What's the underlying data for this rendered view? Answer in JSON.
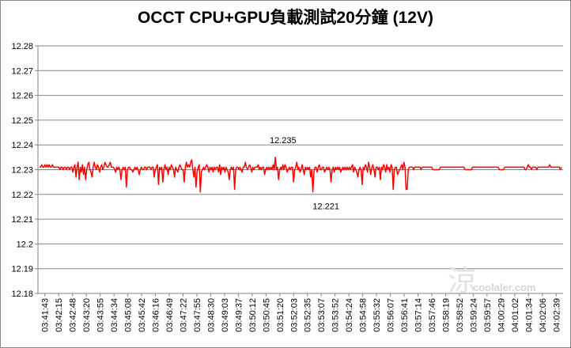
{
  "chart_data": {
    "type": "line",
    "title": "OCCT CPU+GPU負載測試20分鐘 (12V)",
    "ylim": [
      12.18,
      12.28
    ],
    "y_ticks": [
      "12.28",
      "12.27",
      "12.26",
      "12.25",
      "12.24",
      "12.23",
      "12.22",
      "12.21",
      "12.2",
      "12.19",
      "12.18"
    ],
    "x_ticks": [
      "03:41:43",
      "03:42:15",
      "03:42:48",
      "03:43:20",
      "03:43:55",
      "03:44:34",
      "03:45:08",
      "03:45:42",
      "03:46:16",
      "03:46:49",
      "03:47:22",
      "03:47:55",
      "03:48:30",
      "03:49:03",
      "03:49:37",
      "03:50:12",
      "03:50:45",
      "03:51:20",
      "03:52:03",
      "03:52:35",
      "03:53:07",
      "03:53:52",
      "03:54:24",
      "03:54:58",
      "03:55:32",
      "03:56:07",
      "03:56:41",
      "03:57:14",
      "03:57:46",
      "03:58:19",
      "03:58:52",
      "03:59:24",
      "03:59:57",
      "04:00:29",
      "04:01:02",
      "04:01:34",
      "04:02:06",
      "04:02:39"
    ],
    "grid": true,
    "series_color": "#ff0000",
    "annotations": [
      {
        "label": "12.235",
        "tick_index": 17,
        "value": 12.235
      },
      {
        "label": "12.221",
        "tick_index": 20,
        "value": 12.221
      }
    ],
    "series": [
      {
        "values": [
          12.231,
          12.231,
          12.232,
          12.231,
          12.231,
          12.232,
          12.231,
          12.232,
          12.231,
          12.232,
          12.231,
          12.231,
          12.232,
          12.231,
          12.231,
          12.231,
          12.231,
          12.231,
          12.231,
          12.23,
          12.231,
          12.231,
          12.23,
          12.231,
          12.231,
          12.23,
          12.231,
          12.231,
          12.23,
          12.231,
          12.231,
          12.229,
          12.231,
          12.232,
          12.227,
          12.231,
          12.233,
          12.226,
          12.231,
          12.229,
          12.232,
          12.228,
          12.231,
          12.226,
          12.23,
          12.232,
          12.233,
          12.23,
          12.229,
          12.227,
          12.231,
          12.233,
          12.231,
          12.23,
          12.232,
          12.231,
          12.229,
          12.231,
          12.232,
          12.23,
          12.231,
          12.233,
          12.232,
          12.231,
          12.231,
          12.232,
          12.233,
          12.231,
          12.231,
          12.231,
          12.23,
          12.229,
          12.231,
          12.23,
          12.231,
          12.23,
          12.226,
          12.23,
          12.231,
          12.23,
          12.231,
          12.223,
          12.23,
          12.231,
          12.231,
          12.23,
          12.23,
          12.229,
          12.23,
          12.231,
          12.23,
          12.231,
          12.23,
          12.228,
          12.23,
          12.231,
          12.23,
          12.23,
          12.231,
          12.231,
          12.23,
          12.231,
          12.231,
          12.231,
          12.23,
          12.231,
          12.231,
          12.227,
          12.23,
          12.231,
          12.232,
          12.224,
          12.231,
          12.23,
          12.231,
          12.225,
          12.23,
          12.232,
          12.23,
          12.231,
          12.228,
          12.231,
          12.23,
          12.232,
          12.231,
          12.23,
          12.227,
          12.231,
          12.23,
          12.229,
          12.231,
          12.232,
          12.231,
          12.23,
          12.23,
          12.225,
          12.231,
          12.233,
          12.231,
          12.232,
          12.231,
          12.233,
          12.234,
          12.23,
          12.227,
          12.231,
          12.223,
          12.229,
          12.231,
          12.232,
          12.221,
          12.229,
          12.23,
          12.231,
          12.23,
          12.231,
          12.232,
          12.231,
          12.229,
          12.231,
          12.23,
          12.231,
          12.229,
          12.231,
          12.23,
          12.231,
          12.231,
          12.229,
          12.232,
          12.228,
          12.231,
          12.23,
          12.231,
          12.229,
          12.231,
          12.23,
          12.229,
          12.226,
          12.23,
          12.231,
          12.23,
          12.231,
          12.222,
          12.23,
          12.231,
          12.231,
          12.23,
          12.231,
          12.23,
          12.229,
          12.231,
          12.231,
          12.233,
          12.231,
          12.23,
          12.231,
          12.232,
          12.231,
          12.229,
          12.231,
          12.23,
          12.231,
          12.231,
          12.231,
          12.232,
          12.23,
          12.231,
          12.23,
          12.231,
          12.231,
          12.228,
          12.23,
          12.231,
          12.23,
          12.231,
          12.23,
          12.231,
          12.23,
          12.232,
          12.23,
          12.235,
          12.23,
          12.231,
          12.226,
          12.23,
          12.231,
          12.23,
          12.232,
          12.23,
          12.232,
          12.231,
          12.229,
          12.23,
          12.231,
          12.23,
          12.231,
          12.231,
          12.225,
          12.23,
          12.231,
          12.233,
          12.23,
          12.231,
          12.229,
          12.23,
          12.232,
          12.23,
          12.228,
          12.231,
          12.23,
          12.231,
          12.23,
          12.231,
          12.227,
          12.23,
          12.221,
          12.229,
          12.231,
          12.231,
          12.229,
          12.231,
          12.232,
          12.23,
          12.23,
          12.231,
          12.231,
          12.229,
          12.23,
          12.231,
          12.23,
          12.231,
          12.23,
          12.225,
          12.23,
          12.231,
          12.229,
          12.231,
          12.23,
          12.231,
          12.23,
          12.231,
          12.229,
          12.23,
          12.231,
          12.23,
          12.231,
          12.23,
          12.231,
          12.23,
          12.231,
          12.23,
          12.231,
          12.232,
          12.229,
          12.231,
          12.23,
          12.229,
          12.227,
          12.23,
          12.231,
          12.23,
          12.224,
          12.231,
          12.23,
          12.232,
          12.231,
          12.229,
          12.233,
          12.231,
          12.228,
          12.231,
          12.232,
          12.23,
          12.227,
          12.231,
          12.231,
          12.23,
          12.231,
          12.226,
          12.231,
          12.23,
          12.232,
          12.231,
          12.229,
          12.232,
          12.23,
          12.231,
          12.229,
          12.232,
          12.231,
          12.222,
          12.23,
          12.231,
          12.231,
          12.228,
          12.229,
          12.23,
          12.231,
          12.232,
          12.23,
          12.233,
          12.231,
          12.222,
          12.222,
          12.23,
          12.231,
          12.231,
          12.231,
          12.231,
          12.23,
          12.231,
          12.231,
          12.231,
          12.231,
          12.231,
          12.231,
          12.23,
          12.231,
          12.231,
          12.231,
          12.231,
          12.231,
          12.231,
          12.231,
          12.231,
          12.231,
          12.231,
          12.23,
          12.23,
          12.23,
          12.23,
          12.23,
          12.23,
          12.23,
          12.231,
          12.231,
          12.231,
          12.231,
          12.231,
          12.231,
          12.231,
          12.231,
          12.231,
          12.231,
          12.231,
          12.231,
          12.231,
          12.231,
          12.231,
          12.231,
          12.231,
          12.231,
          12.231,
          12.231,
          12.231,
          12.231,
          12.231,
          12.23,
          12.23,
          12.23,
          12.23,
          12.23,
          12.23,
          12.23,
          12.231,
          12.231,
          12.231,
          12.231,
          12.231,
          12.231,
          12.231,
          12.231,
          12.231,
          12.231,
          12.231,
          12.231,
          12.231,
          12.231,
          12.231,
          12.231,
          12.231,
          12.231,
          12.231,
          12.231,
          12.231,
          12.231,
          12.231,
          12.231,
          12.231,
          12.23,
          12.23,
          12.23,
          12.23,
          12.23,
          12.231,
          12.231,
          12.231,
          12.231,
          12.231,
          12.231,
          12.231,
          12.231,
          12.231,
          12.231,
          12.231,
          12.231,
          12.231,
          12.231,
          12.231,
          12.231,
          12.231,
          12.231,
          12.231,
          12.23,
          12.23,
          12.231,
          12.232,
          12.231,
          12.231,
          12.23,
          12.231,
          12.231,
          12.231,
          12.231,
          12.23,
          12.231,
          12.231,
          12.231,
          12.231,
          12.231,
          12.231,
          12.231,
          12.231,
          12.231,
          12.231,
          12.231,
          12.232,
          12.231,
          12.231,
          12.231,
          12.231,
          12.231,
          12.231,
          12.231,
          12.231,
          12.231,
          12.23,
          12.231
        ]
      }
    ]
  },
  "watermark": {
    "mark": "涼",
    "text": "coolaler.com"
  }
}
